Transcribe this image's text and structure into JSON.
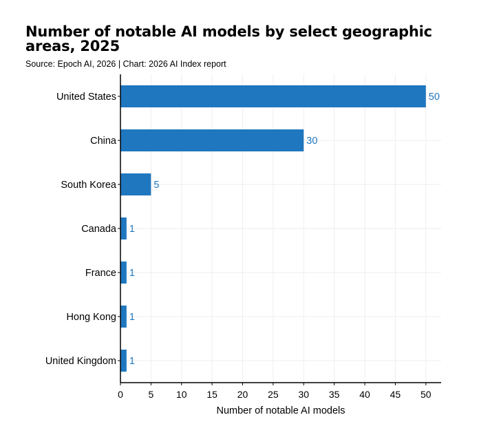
{
  "chart_data": {
    "type": "bar",
    "orientation": "horizontal",
    "title": "Number of notable AI models by select geographic areas, 2025",
    "subtitle": "Source: Epoch AI, 2026 | Chart: 2026 AI Index report",
    "categories": [
      "United States",
      "China",
      "South Korea",
      "Canada",
      "France",
      "Hong Kong",
      "United Kingdom"
    ],
    "values": [
      50,
      30,
      5,
      1,
      1,
      1,
      1
    ],
    "xlabel": "Number of notable AI models",
    "ylabel": "",
    "xlim": [
      0,
      52.5
    ],
    "xticks": [
      0,
      5,
      10,
      15,
      20,
      25,
      30,
      35,
      40,
      45,
      50
    ],
    "grid": true,
    "colors": {
      "bar": "#1f77bf",
      "label": "#1f77bf",
      "grid": "#eeeeee",
      "axis": "#000000"
    }
  }
}
